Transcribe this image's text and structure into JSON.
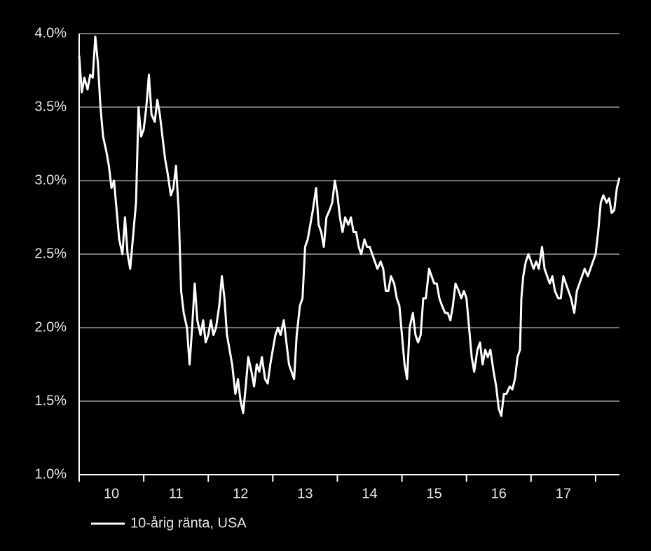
{
  "chart_data": {
    "type": "line",
    "x": [
      2010.0,
      2010.04,
      2010.08,
      2010.13,
      2010.17,
      2010.21,
      2010.25,
      2010.29,
      2010.33,
      2010.37,
      2010.42,
      2010.46,
      2010.5,
      2010.54,
      2010.58,
      2010.62,
      2010.67,
      2010.71,
      2010.75,
      2010.79,
      2010.83,
      2010.88,
      2010.92,
      2010.96,
      2011.0,
      2011.04,
      2011.08,
      2011.12,
      2011.17,
      2011.21,
      2011.25,
      2011.29,
      2011.33,
      2011.37,
      2011.42,
      2011.46,
      2011.5,
      2011.54,
      2011.58,
      2011.62,
      2011.67,
      2011.71,
      2011.75,
      2011.79,
      2011.83,
      2011.88,
      2011.92,
      2011.96,
      2012.0,
      2012.04,
      2012.08,
      2012.12,
      2012.17,
      2012.21,
      2012.25,
      2012.29,
      2012.33,
      2012.37,
      2012.42,
      2012.46,
      2012.5,
      2012.54,
      2012.58,
      2012.62,
      2012.67,
      2012.71,
      2012.75,
      2012.79,
      2012.83,
      2012.88,
      2012.92,
      2012.96,
      2013.0,
      2013.04,
      2013.08,
      2013.12,
      2013.17,
      2013.21,
      2013.25,
      2013.29,
      2013.33,
      2013.37,
      2013.42,
      2013.46,
      2013.5,
      2013.54,
      2013.58,
      2013.62,
      2013.67,
      2013.71,
      2013.75,
      2013.79,
      2013.83,
      2013.88,
      2013.92,
      2013.96,
      2014.0,
      2014.04,
      2014.08,
      2014.12,
      2014.17,
      2014.21,
      2014.25,
      2014.29,
      2014.33,
      2014.37,
      2014.42,
      2014.46,
      2014.5,
      2014.54,
      2014.58,
      2014.62,
      2014.67,
      2014.71,
      2014.75,
      2014.79,
      2014.83,
      2014.88,
      2014.92,
      2014.96,
      2015.0,
      2015.04,
      2015.08,
      2015.12,
      2015.17,
      2015.21,
      2015.25,
      2015.29,
      2015.33,
      2015.37,
      2015.42,
      2015.46,
      2015.5,
      2015.54,
      2015.58,
      2015.62,
      2015.67,
      2015.71,
      2015.75,
      2015.79,
      2015.83,
      2015.88,
      2015.92,
      2015.96,
      2016.0,
      2016.04,
      2016.08,
      2016.12,
      2016.17,
      2016.21,
      2016.25,
      2016.29,
      2016.33,
      2016.37,
      2016.42,
      2016.46,
      2016.5,
      2016.54,
      2016.58,
      2016.62,
      2016.67,
      2016.71,
      2016.75,
      2016.79,
      2016.83,
      2016.85,
      2016.88,
      2016.92,
      2016.96,
      2017.0,
      2017.04,
      2017.08,
      2017.12,
      2017.17,
      2017.21,
      2017.25,
      2017.29,
      2017.33,
      2017.37,
      2017.42,
      2017.46,
      2017.5,
      2017.54,
      2017.58,
      2017.62,
      2017.67,
      2017.71,
      2017.75,
      2017.79,
      2017.83,
      2017.88,
      2017.92,
      2017.96,
      2018.0,
      2018.04,
      2018.08,
      2018.12,
      2018.17,
      2018.21,
      2018.25,
      2018.29,
      2018.33,
      2018.37
    ],
    "series": [
      {
        "name": "10-årig ränta, USA",
        "color": "#ffffff",
        "values": [
          3.85,
          3.6,
          3.7,
          3.62,
          3.72,
          3.7,
          3.98,
          3.8,
          3.5,
          3.3,
          3.2,
          3.1,
          2.95,
          3.0,
          2.8,
          2.6,
          2.5,
          2.75,
          2.5,
          2.4,
          2.6,
          2.85,
          3.5,
          3.3,
          3.35,
          3.5,
          3.72,
          3.45,
          3.4,
          3.55,
          3.45,
          3.3,
          3.15,
          3.05,
          2.9,
          2.95,
          3.1,
          2.8,
          2.25,
          2.1,
          2.0,
          1.75,
          2.0,
          2.3,
          2.05,
          1.95,
          2.05,
          1.9,
          1.95,
          2.05,
          1.95,
          2.0,
          2.15,
          2.35,
          2.2,
          1.95,
          1.85,
          1.75,
          1.55,
          1.65,
          1.5,
          1.42,
          1.6,
          1.8,
          1.7,
          1.6,
          1.75,
          1.7,
          1.8,
          1.65,
          1.62,
          1.75,
          1.85,
          1.95,
          2.0,
          1.95,
          2.05,
          1.9,
          1.75,
          1.7,
          1.65,
          1.95,
          2.15,
          2.2,
          2.55,
          2.6,
          2.7,
          2.8,
          2.95,
          2.7,
          2.65,
          2.55,
          2.75,
          2.8,
          2.85,
          3.0,
          2.9,
          2.75,
          2.65,
          2.75,
          2.7,
          2.75,
          2.65,
          2.65,
          2.55,
          2.5,
          2.6,
          2.55,
          2.55,
          2.5,
          2.45,
          2.4,
          2.45,
          2.4,
          2.25,
          2.25,
          2.35,
          2.3,
          2.2,
          2.15,
          1.95,
          1.75,
          1.65,
          2.0,
          2.1,
          1.95,
          1.9,
          1.95,
          2.2,
          2.2,
          2.4,
          2.35,
          2.3,
          2.3,
          2.2,
          2.15,
          2.1,
          2.1,
          2.05,
          2.15,
          2.3,
          2.25,
          2.2,
          2.25,
          2.2,
          2.0,
          1.8,
          1.7,
          1.85,
          1.9,
          1.75,
          1.85,
          1.8,
          1.85,
          1.7,
          1.6,
          1.45,
          1.4,
          1.55,
          1.55,
          1.6,
          1.58,
          1.65,
          1.8,
          1.85,
          2.2,
          2.35,
          2.45,
          2.5,
          2.45,
          2.4,
          2.45,
          2.4,
          2.55,
          2.4,
          2.35,
          2.3,
          2.35,
          2.25,
          2.2,
          2.2,
          2.35,
          2.3,
          2.25,
          2.2,
          2.1,
          2.25,
          2.3,
          2.35,
          2.4,
          2.35,
          2.4,
          2.45,
          2.5,
          2.65,
          2.85,
          2.9,
          2.85,
          2.88,
          2.78,
          2.8,
          2.95,
          3.02
        ]
      }
    ],
    "xlim": [
      2010,
      2018.37
    ],
    "xticks": [
      {
        "value": 2010,
        "label": "10"
      },
      {
        "value": 2011,
        "label": "11"
      },
      {
        "value": 2012,
        "label": "12"
      },
      {
        "value": 2013,
        "label": "13"
      },
      {
        "value": 2014,
        "label": "14"
      },
      {
        "value": 2015,
        "label": "15"
      },
      {
        "value": 2016,
        "label": "16"
      },
      {
        "value": 2017,
        "label": "17"
      },
      {
        "value": 2018,
        "label": null
      }
    ],
    "ylim": [
      1.0,
      4.0
    ],
    "yticks": [
      {
        "value": 1.0,
        "label": "1.0%"
      },
      {
        "value": 1.5,
        "label": "1.5%"
      },
      {
        "value": 2.0,
        "label": "2.0%"
      },
      {
        "value": 2.5,
        "label": "2.5%"
      },
      {
        "value": 3.0,
        "label": "3.0%"
      },
      {
        "value": 3.5,
        "label": "3.5%"
      },
      {
        "value": 4.0,
        "label": "4.0%"
      }
    ],
    "grid": true,
    "legend": "bottom-left"
  }
}
